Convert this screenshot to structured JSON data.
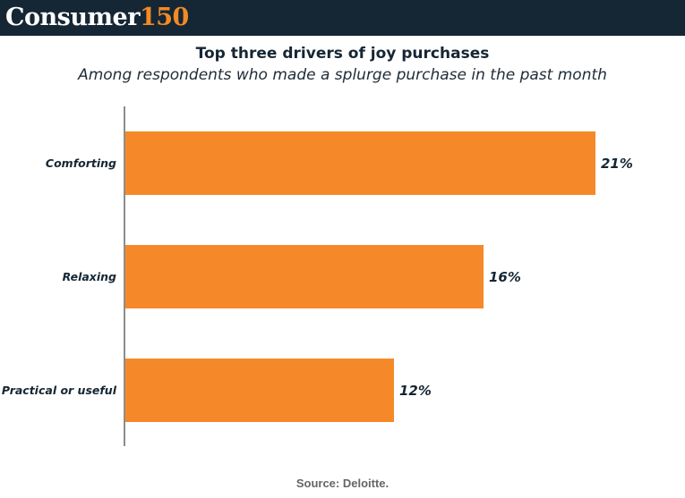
{
  "brand": {
    "name": "Consumer",
    "number": "150"
  },
  "chart_data": {
    "type": "bar",
    "orientation": "horizontal",
    "title": "Top three drivers of joy purchases",
    "subtitle": "Among respondents who made a splurge purchase in the past month",
    "categories": [
      "Comforting",
      "Relaxing",
      "Practical or useful"
    ],
    "values": [
      21,
      16,
      12
    ],
    "value_labels": [
      "21%",
      "16%",
      "12%"
    ],
    "xlim": [
      0,
      24
    ],
    "grid": false,
    "legend": "none",
    "bar_color": "#f5892a",
    "source": "Source: Deloitte."
  }
}
